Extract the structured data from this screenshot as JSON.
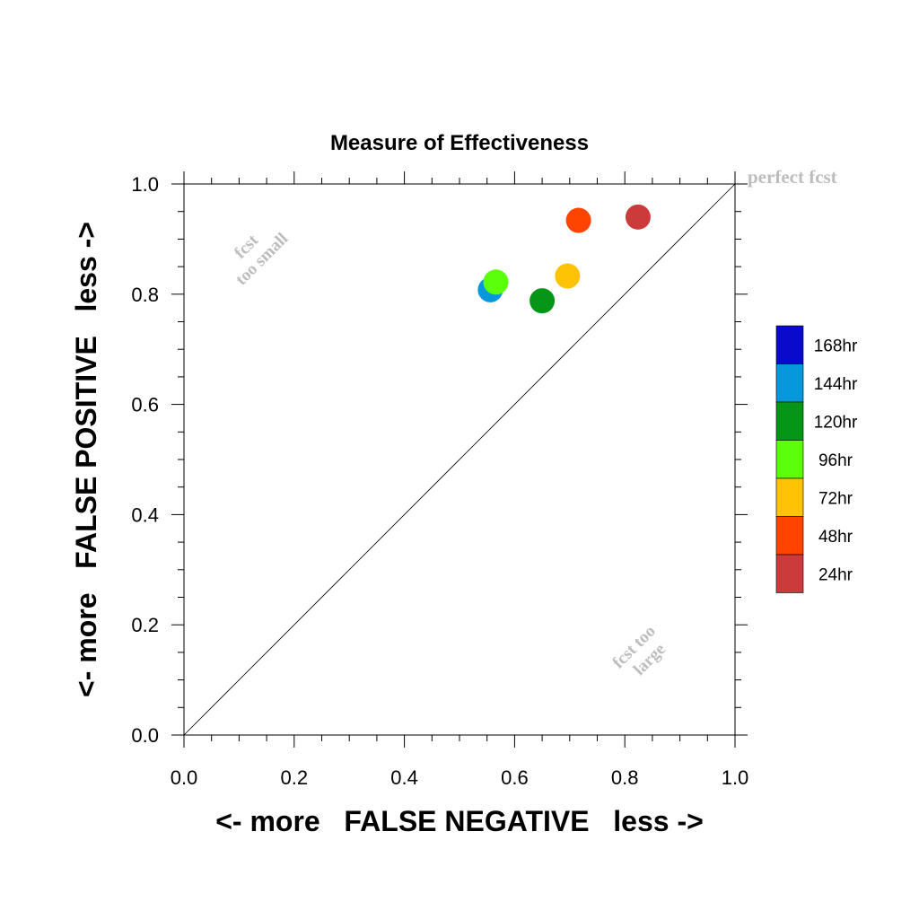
{
  "chart_data": {
    "type": "scatter",
    "title": "Measure of Effectiveness",
    "xlabel": "<- more   FALSE NEGATIVE   less ->",
    "ylabel": "<- more   FALSE POSITIVE   less ->",
    "xlim": [
      0.0,
      1.0
    ],
    "ylim": [
      0.0,
      1.0
    ],
    "x_ticks": [
      "0.0",
      "0.2",
      "0.4",
      "0.6",
      "0.8",
      "1.0"
    ],
    "y_ticks": [
      "0.0",
      "0.2",
      "0.4",
      "0.6",
      "0.8",
      "1.0"
    ],
    "diagonal": true,
    "grid": false,
    "legend_position": "right",
    "annotations": {
      "perfect": "perfect fcst",
      "too_small_line1": "fcst",
      "too_small_line2": "too small",
      "too_large_line1": "fcst too",
      "too_large_line2": "large"
    },
    "series": [
      {
        "name": "168hr",
        "color": "#0a0acc",
        "points": []
      },
      {
        "name": "144hr",
        "color": "#0797db",
        "points": [
          {
            "x": 0.556,
            "y": 0.808
          }
        ]
      },
      {
        "name": "120hr",
        "color": "#069617",
        "points": [
          {
            "x": 0.65,
            "y": 0.788
          }
        ]
      },
      {
        "name": "96hr",
        "color": "#5cff0a",
        "points": [
          {
            "x": 0.566,
            "y": 0.822
          }
        ]
      },
      {
        "name": "72hr",
        "color": "#ffc306",
        "points": [
          {
            "x": 0.696,
            "y": 0.833
          }
        ]
      },
      {
        "name": "48hr",
        "color": "#ff4400",
        "points": [
          {
            "x": 0.716,
            "y": 0.934
          }
        ]
      },
      {
        "name": "24hr",
        "color": "#cc3b3b",
        "points": [
          {
            "x": 0.824,
            "y": 0.94
          }
        ]
      }
    ]
  }
}
